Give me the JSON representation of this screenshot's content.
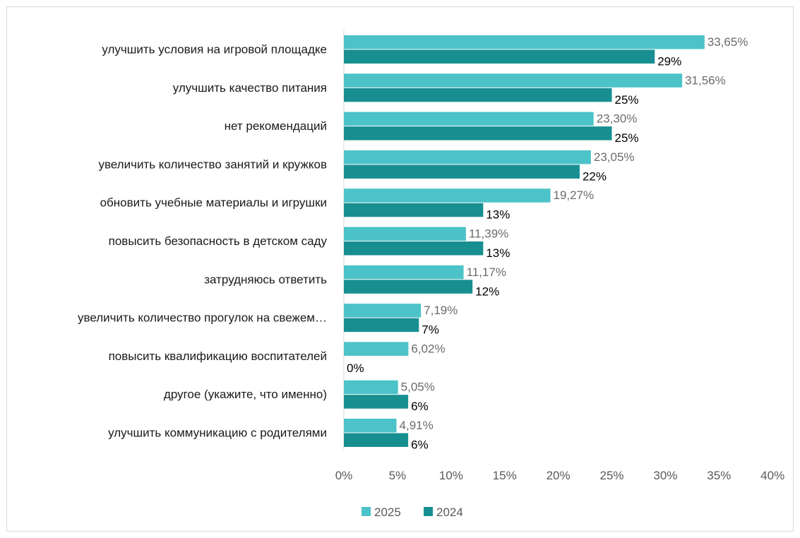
{
  "chart_data": {
    "type": "bar",
    "orientation": "horizontal",
    "categories": [
      "улучшить условия на игровой площадке",
      "улучшить качество питания",
      "нет рекомендаций",
      "увеличить количество занятий и кружков",
      "обновить учебные материалы и игрушки",
      "повысить безопасность в детском саду",
      "затрудняюсь ответить",
      "увеличить количество прогулок на свежем…",
      "повысить квалификацию воспитателей",
      "другое (укажите, что именно)",
      "улучшить коммуникацию с родителями"
    ],
    "series": [
      {
        "name": "2025",
        "color": "#4cc3c8",
        "values": [
          33.65,
          31.56,
          23.3,
          23.05,
          19.27,
          11.39,
          11.17,
          7.19,
          6.02,
          5.05,
          4.91
        ],
        "labels": [
          "33,65%",
          "31,56%",
          "23,30%",
          "23,05%",
          "19,27%",
          "11,39%",
          "11,17%",
          "7,19%",
          "6,02%",
          "5,05%",
          "4,91%"
        ]
      },
      {
        "name": "2024",
        "color": "#178f91",
        "values": [
          29,
          25,
          25,
          22,
          13,
          13,
          12,
          7,
          0,
          6,
          6
        ],
        "labels": [
          "29%",
          "25%",
          "25%",
          "22%",
          "13%",
          "13%",
          "12%",
          "7%",
          "0%",
          "6%",
          "6%"
        ]
      }
    ],
    "xlim": [
      0,
      40
    ],
    "xticks": [
      "0%",
      "5%",
      "10%",
      "15%",
      "20%",
      "25%",
      "30%",
      "35%",
      "40%"
    ],
    "title": "",
    "xlabel": "",
    "ylabel": "",
    "grid": false,
    "legend_position": "bottom"
  }
}
